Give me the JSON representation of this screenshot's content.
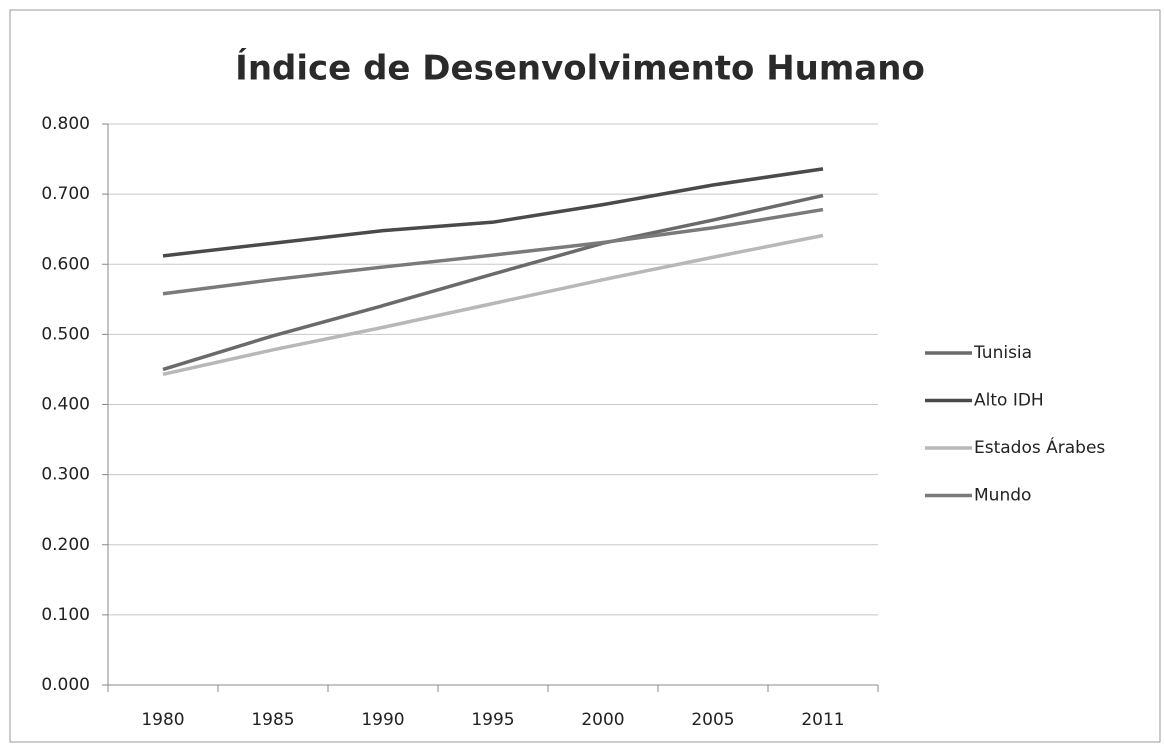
{
  "chart_data": {
    "type": "line",
    "title": "Índice de Desenvolvimento Humano",
    "categories": [
      "1980",
      "1985",
      "1990",
      "1995",
      "2000",
      "2005",
      "2011"
    ],
    "series": [
      {
        "name": "Tunisia",
        "color": "#6a6a6a",
        "values": [
          0.45,
          0.498,
          0.541,
          0.586,
          0.63,
          0.663,
          0.698
        ]
      },
      {
        "name": "Alto IDH",
        "color": "#4a4a4a",
        "values": [
          0.612,
          0.63,
          0.648,
          0.66,
          0.685,
          0.713,
          0.736
        ]
      },
      {
        "name": "Estados Árabes",
        "color": "#b8b8b8",
        "values": [
          0.443,
          0.478,
          0.51,
          0.544,
          0.578,
          0.61,
          0.641
        ]
      },
      {
        "name": "Mundo",
        "color": "#7a7a7a",
        "values": [
          0.558,
          0.578,
          0.596,
          0.613,
          0.631,
          0.652,
          0.678
        ]
      }
    ],
    "ylim": [
      0,
      0.8
    ],
    "yticks": [
      {
        "value": 0,
        "label": "0.000"
      },
      {
        "value": 0.1,
        "label": "0.100"
      },
      {
        "value": 0.2,
        "label": "0.200"
      },
      {
        "value": 0.3,
        "label": "0.300"
      },
      {
        "value": 0.4,
        "label": "0.400"
      },
      {
        "value": 0.5,
        "label": "0.500"
      },
      {
        "value": 0.6,
        "label": "0.600"
      },
      {
        "value": 0.7,
        "label": "0.700"
      },
      {
        "value": 0.8,
        "label": "0.800"
      }
    ],
    "grid": true,
    "legend": "right"
  }
}
